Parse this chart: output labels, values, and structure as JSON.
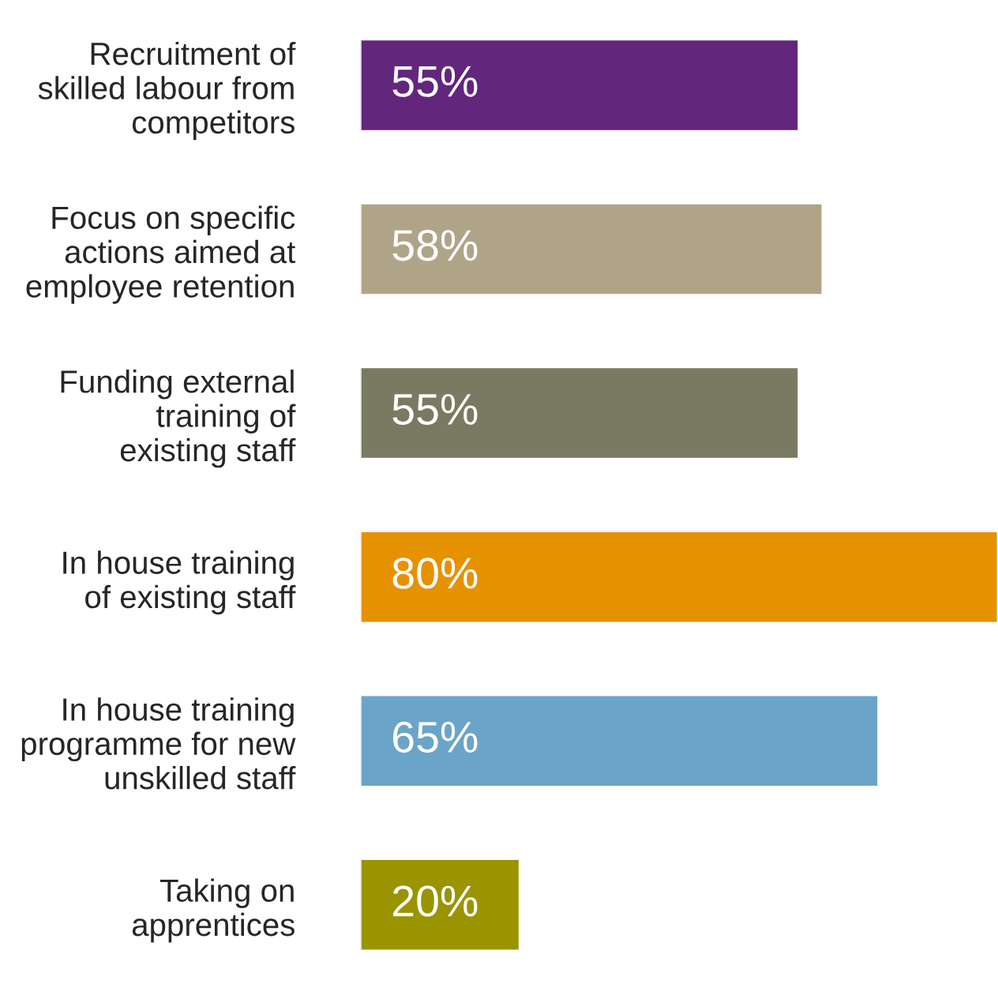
{
  "chart_data": {
    "type": "bar",
    "orientation": "horizontal",
    "categories": [
      "Recruitment of\nskilled labour from\ncompetitors",
      "Focus on specific\nactions aimed at\nemployee retention",
      "Funding external\ntraining of\nexisting staff",
      "In house training\nof existing staff",
      "In house training\nprogramme for new\nunskilled staff",
      "Taking on\napprentices"
    ],
    "values": [
      55,
      58,
      55,
      80,
      65,
      20
    ],
    "colors": [
      "#62267d",
      "#b0a488",
      "#7a7a62",
      "#e69100",
      "#6aa4c8",
      "#9a9400"
    ],
    "value_labels": [
      "55%",
      "58%",
      "55%",
      "80%",
      "65%",
      "20%"
    ],
    "xlim": [
      0,
      80
    ],
    "tick_labels": "y",
    "grid": false,
    "legend": false
  }
}
